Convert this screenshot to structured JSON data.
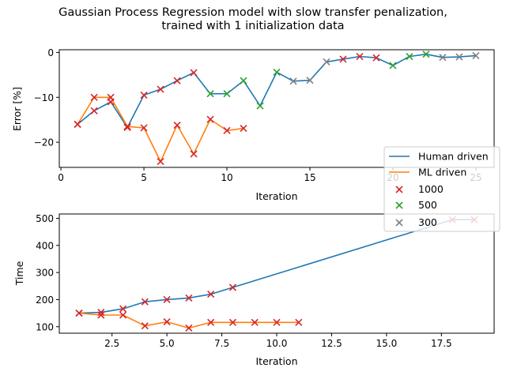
{
  "figure": {
    "title_line1": "Gaussian Process Regression model with slow transfer  penalization,",
    "title_line2": "trained with 1 initialization data"
  },
  "legend": {
    "human": "Human driven",
    "ml": "ML driven",
    "m1000": "1000",
    "m500": "500",
    "m300": "300"
  },
  "colors": {
    "human": "#1f77b4",
    "ml": "#ff7f0e",
    "c1000": "#d62728",
    "c500": "#2ca02c",
    "c300": "#7f7f7f",
    "axis": "#000000"
  },
  "chart_data": [
    {
      "type": "line",
      "xlabel": "Iteration",
      "ylabel": "Error [%]",
      "xlim": [
        -0.1,
        26.1
      ],
      "ylim": [
        -25.6,
        0.6
      ],
      "xticks": [
        0,
        5,
        10,
        15,
        20,
        25
      ],
      "yticks": [
        0,
        -10,
        -20
      ],
      "xtick_labels": [
        "0",
        "5",
        "10",
        "15",
        "20",
        "25"
      ],
      "ytick_labels": [
        "0",
        "−10",
        "−20"
      ],
      "grid": false,
      "series": [
        {
          "name": "Human driven",
          "color": "#1f77b4",
          "x": [
            1,
            2,
            3,
            4,
            5,
            6,
            7,
            8,
            9,
            10,
            11,
            12,
            13,
            14,
            15,
            16,
            17,
            18,
            19,
            20,
            21,
            22,
            23,
            24,
            25
          ],
          "y": [
            -16,
            -13,
            -11,
            -16.7,
            -9.5,
            -8.2,
            -6.3,
            -4.5,
            -9.2,
            -9.2,
            -6.3,
            -11.9,
            -4.4,
            -6.4,
            -6.2,
            -2.1,
            -1.5,
            -0.9,
            -1.2,
            -2.9,
            -0.9,
            -0.4,
            -1.1,
            -1.0,
            -0.7
          ],
          "marker_groups": [
            "1000",
            "1000",
            "1000",
            "1000",
            "1000",
            "1000",
            "1000",
            "1000",
            "500",
            "500",
            "500",
            "500",
            "500",
            "300",
            "300",
            "300",
            "1000",
            "1000",
            "1000",
            "500",
            "500",
            "500",
            "300",
            "300",
            "300"
          ]
        },
        {
          "name": "ML driven",
          "color": "#ff7f0e",
          "x": [
            1,
            2,
            3,
            4,
            5,
            6,
            7,
            8,
            9,
            10,
            11
          ],
          "y": [
            -16,
            -10,
            -10,
            -16.5,
            -16.8,
            -24.3,
            -16.2,
            -22.6,
            -14.9,
            -17.4,
            -16.9
          ],
          "marker_groups": [
            "1000",
            "1000",
            "1000",
            "1000",
            "1000",
            "1000",
            "1000",
            "1000",
            "1000",
            "1000",
            "1000"
          ]
        }
      ]
    },
    {
      "type": "line",
      "xlabel": "Iteration",
      "ylabel": "Time",
      "xlim": [
        0.1,
        19.9
      ],
      "ylim": [
        76,
        516
      ],
      "xticks": [
        2.5,
        5.0,
        7.5,
        10.0,
        12.5,
        15.0,
        17.5
      ],
      "yticks": [
        100,
        200,
        300,
        400,
        500
      ],
      "xtick_labels": [
        "2.5",
        "5.0",
        "7.5",
        "10.0",
        "12.5",
        "15.0",
        "17.5"
      ],
      "ytick_labels": [
        "100",
        "200",
        "300",
        "400",
        "500"
      ],
      "grid": false,
      "series": [
        {
          "name": "Human driven",
          "color": "#1f77b4",
          "x": [
            1,
            2,
            3,
            4,
            5,
            6,
            7,
            8,
            18,
            19
          ],
          "y": [
            150,
            153,
            166,
            192,
            200,
            206,
            220,
            245,
            495,
            495
          ],
          "marker_groups": [
            "1000",
            "1000",
            "1000",
            "1000",
            "1000",
            "1000",
            "1000",
            "1000",
            "1000",
            "1000"
          ]
        },
        {
          "name": "ML driven",
          "color": "#ff7f0e",
          "x": [
            1,
            2,
            3,
            4,
            5,
            6,
            7,
            8,
            9,
            10,
            11
          ],
          "y": [
            150,
            143,
            143,
            103,
            118,
            95,
            116,
            116,
            116,
            116,
            116
          ],
          "marker_groups": [
            "1000",
            "1000",
            "1000",
            "1000",
            "1000",
            "1000",
            "1000",
            "1000",
            "1000",
            "1000",
            "1000"
          ]
        }
      ]
    }
  ]
}
